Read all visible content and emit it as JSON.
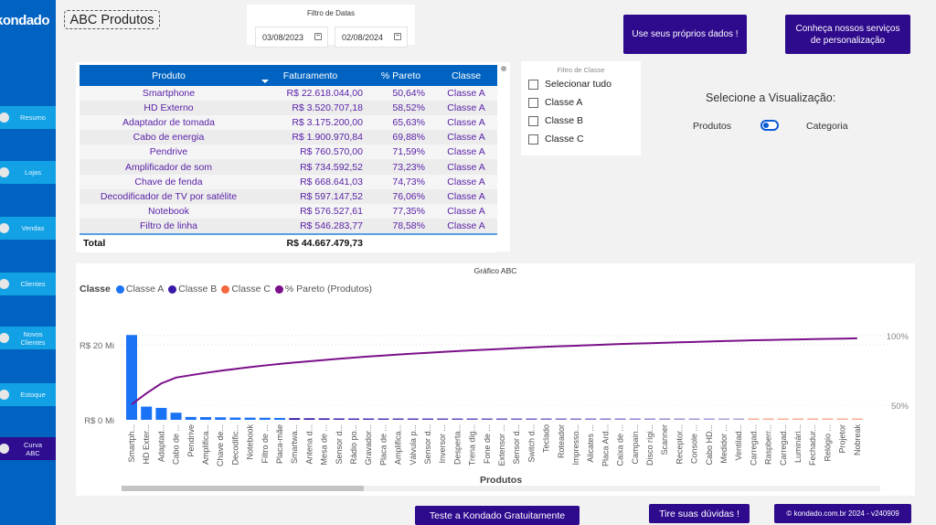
{
  "sidebar": {
    "logo": "kondado",
    "items": [
      {
        "label": "Resumo",
        "active": false
      },
      {
        "label": "Lojas",
        "active": false
      },
      {
        "label": "Vendas",
        "active": false
      },
      {
        "label": "Clientes",
        "active": false
      },
      {
        "label": "Novos Clientes",
        "active": false
      },
      {
        "label": "Estoque",
        "active": false
      },
      {
        "label": "Curva ABC",
        "active": true
      }
    ]
  },
  "header": {
    "title": "ABC Produtos"
  },
  "date_filter": {
    "title": "Filtro de Datas",
    "start": "03/08/2023",
    "end": "02/08/2024"
  },
  "buttons": {
    "own_data": "Use seus próprios dados !",
    "services": "Conheça nossos serviços de personalização",
    "trial": "Teste a Kondado Gratuitamente",
    "doubts": "Tire suas dúvidas !",
    "copyright": "© kondado.com.br 2024 - v240909"
  },
  "table": {
    "columns": [
      "Produto",
      "Faturamento",
      "% Pareto",
      "Classe"
    ],
    "rows": [
      [
        "Smartphone",
        "R$ 22.618.044,00",
        "50,64%",
        "Classe A"
      ],
      [
        "HD Externo",
        "R$ 3.520.707,18",
        "58,52%",
        "Classe A"
      ],
      [
        "Adaptador de tomada",
        "R$ 3.175.200,00",
        "65,63%",
        "Classe A"
      ],
      [
        "Cabo de energia",
        "R$ 1.900.970,84",
        "69,88%",
        "Classe A"
      ],
      [
        "Pendrive",
        "R$ 760.570,00",
        "71,59%",
        "Classe A"
      ],
      [
        "Amplificador de som",
        "R$ 734.592,52",
        "73,23%",
        "Classe A"
      ],
      [
        "Chave de fenda",
        "R$ 668.641,03",
        "74,73%",
        "Classe A"
      ],
      [
        "Decodificador de TV por satélite",
        "R$ 597.147,52",
        "76,06%",
        "Classe A"
      ],
      [
        "Notebook",
        "R$ 576.527,61",
        "77,35%",
        "Classe A"
      ],
      [
        "Filtro de linha",
        "R$ 546.283,77",
        "78,58%",
        "Classe A"
      ]
    ],
    "total_label": "Total",
    "total_value": "R$ 44.667.479,73"
  },
  "class_filter": {
    "title": "Filtro de Classe",
    "options": [
      {
        "label": "Selecionar tudo",
        "checked": false
      },
      {
        "label": "Classe A",
        "checked": false
      },
      {
        "label": "Classe B",
        "checked": false
      },
      {
        "label": "Classe C",
        "checked": false
      }
    ]
  },
  "visualization": {
    "label": "Selecione a Visualização:",
    "option_left": "Produtos",
    "option_right": "Categoria",
    "selected": "Produtos"
  },
  "colors": {
    "classe_a": "#1a73f5",
    "classe_b": "#3a18a8",
    "classe_c": "#f4683c",
    "pareto": "#7b0f8a",
    "sidebar": "#0063c1",
    "button": "#2e0a8c"
  },
  "chart_data": {
    "type": "bar",
    "title": "Gráfico ABC",
    "legend_title": "Classe",
    "legend": [
      "Classe A",
      "Classe B",
      "Classe C",
      "% Pareto (Produtos)"
    ],
    "legend_position": "top-left",
    "xlabel": "Produtos",
    "ylabel": "",
    "y_ticks": [
      "R$ 0 Mi",
      "R$ 20 Mi"
    ],
    "ylim": [
      0,
      22.5
    ],
    "y2_ticks": [
      "50%",
      "100%"
    ],
    "y2lim": [
      45,
      102
    ],
    "categories": [
      "Smartph...",
      "HD Exter...",
      "Adaptad...",
      "Cabo de ...",
      "Pendrive",
      "Amplifica...",
      "Chave de...",
      "Decodific...",
      "Notebook",
      "Filtro de ...",
      "Placa-mãe",
      "Smartwa...",
      "Antena d...",
      "Mesa de ...",
      "Sensor d...",
      "Rádio po...",
      "Gravador...",
      "Placa de ...",
      "Amplifica...",
      "Válvula p...",
      "Sensor d...",
      "Inversor ...",
      "Desperta...",
      "Trena dig...",
      "Fone de ...",
      "Extensor ...",
      "Sensor d...",
      "Switch d...",
      "Teclado",
      "Roteador",
      "Impresso...",
      "Alicates ...",
      "Placa Ard...",
      "Caixa de ...",
      "Campain...",
      "Disco rígi...",
      "Scanner",
      "Receptor...",
      "Console ...",
      "Cabo HD...",
      "Medidor ...",
      "Ventilad...",
      "Carregad...",
      "Raspberr...",
      "Carregad...",
      "Luminári...",
      "Fechadur...",
      "Relógio ...",
      "Projetor",
      "Nobreak"
    ],
    "values_mi": [
      22.62,
      3.52,
      3.18,
      1.9,
      0.76,
      0.73,
      0.67,
      0.6,
      0.58,
      0.55,
      0.5,
      0.45,
      0.42,
      0.4,
      0.38,
      0.36,
      0.34,
      0.32,
      0.3,
      0.29,
      0.28,
      0.27,
      0.26,
      0.25,
      0.24,
      0.23,
      0.22,
      0.21,
      0.2,
      0.19,
      0.18,
      0.17,
      0.16,
      0.15,
      0.14,
      0.14,
      0.13,
      0.12,
      0.12,
      0.11,
      0.11,
      0.1,
      0.1,
      0.09,
      0.08,
      0.08,
      0.07,
      0.07,
      0.06,
      0.06
    ],
    "classes": [
      "A",
      "A",
      "A",
      "A",
      "A",
      "A",
      "A",
      "A",
      "A",
      "A",
      "A",
      "B",
      "B",
      "B",
      "B",
      "B",
      "B",
      "B",
      "B",
      "B",
      "B",
      "B",
      "B",
      "B",
      "B",
      "B",
      "B",
      "B",
      "B",
      "B",
      "B",
      "B",
      "B",
      "B",
      "B",
      "B",
      "B",
      "B",
      "B",
      "B",
      "B",
      "B",
      "C",
      "C",
      "C",
      "C",
      "C",
      "C",
      "C",
      "C"
    ],
    "pareto_pct": [
      50.64,
      58.52,
      65.63,
      69.88,
      71.59,
      73.23,
      74.73,
      76.06,
      77.35,
      78.58,
      79.7,
      80.7,
      81.6,
      82.5,
      83.4,
      84.2,
      85.0,
      85.7,
      86.4,
      87.1,
      87.7,
      88.3,
      88.9,
      89.5,
      90.0,
      90.5,
      91.0,
      91.5,
      92.0,
      92.4,
      92.8,
      93.2,
      93.6,
      94.0,
      94.3,
      94.6,
      94.9,
      95.2,
      95.5,
      95.8,
      96.1,
      96.4,
      96.7,
      96.9,
      97.1,
      97.3,
      97.5,
      97.7,
      97.9,
      98.1
    ]
  }
}
